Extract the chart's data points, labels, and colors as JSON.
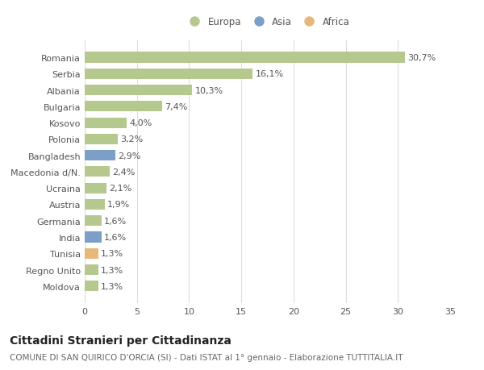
{
  "countries": [
    "Romania",
    "Serbia",
    "Albania",
    "Bulgaria",
    "Kosovo",
    "Polonia",
    "Bangladesh",
    "Macedonia d/N.",
    "Ucraina",
    "Austria",
    "Germania",
    "India",
    "Tunisia",
    "Regno Unito",
    "Moldova"
  ],
  "values": [
    30.7,
    16.1,
    10.3,
    7.4,
    4.0,
    3.2,
    2.9,
    2.4,
    2.1,
    1.9,
    1.6,
    1.6,
    1.3,
    1.3,
    1.3
  ],
  "labels": [
    "30,7%",
    "16,1%",
    "10,3%",
    "7,4%",
    "4,0%",
    "3,2%",
    "2,9%",
    "2,4%",
    "2,1%",
    "1,9%",
    "1,6%",
    "1,6%",
    "1,3%",
    "1,3%",
    "1,3%"
  ],
  "continents": [
    "Europa",
    "Europa",
    "Europa",
    "Europa",
    "Europa",
    "Europa",
    "Asia",
    "Europa",
    "Europa",
    "Europa",
    "Europa",
    "Asia",
    "Africa",
    "Europa",
    "Europa"
  ],
  "colors": {
    "Europa": "#b5c98e",
    "Asia": "#7b9fc7",
    "Africa": "#e8b87a"
  },
  "xlim": [
    0,
    35
  ],
  "xticks": [
    0,
    5,
    10,
    15,
    20,
    25,
    30,
    35
  ],
  "background_color": "#ffffff",
  "grid_color": "#dddddd",
  "title": "Cittadini Stranieri per Cittadinanza",
  "subtitle": "COMUNE DI SAN QUIRICO D'ORCIA (SI) - Dati ISTAT al 1° gennaio - Elaborazione TUTTITALIA.IT",
  "bar_height": 0.65,
  "label_fontsize": 8,
  "tick_fontsize": 8,
  "title_fontsize": 10,
  "subtitle_fontsize": 7.5,
  "legend_order": [
    "Europa",
    "Asia",
    "Africa"
  ]
}
